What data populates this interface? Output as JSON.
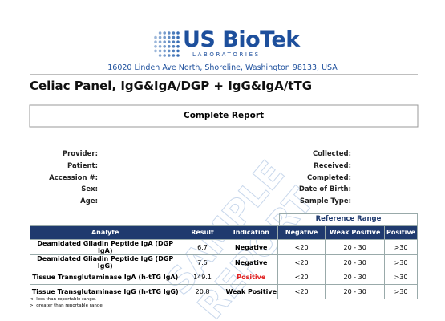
{
  "header": {
    "logo": "US BioTek",
    "logo_sub": "LABORATORIES",
    "address": "16020 Linden Ave North, Shoreline, Washington 98133, USA"
  },
  "title": "Celiac Panel, IgG&IgA/DGP + IgG&IgA/tTG",
  "report_label": "Complete Report",
  "fields_left": [
    "Provider:",
    "Patient:",
    "Accession #:",
    "Sex:",
    "Age:"
  ],
  "fields_right": [
    "Collected:",
    "Received:",
    "Completed:",
    "Date of Birth:",
    "Sample Type:"
  ],
  "table": {
    "group_header": "Reference Range",
    "columns": [
      "Analyte",
      "Result",
      "Indication",
      "Negative",
      "Weak Positive",
      "Positive"
    ],
    "rows": [
      [
        "Deamidated Gliadin Peptide IgA (DGP IgA)",
        "6.7",
        "Negative",
        "<20",
        "20 - 30",
        ">30"
      ],
      [
        "Deamidated Gliadin Peptide IgG (DGP IgG)",
        "7.5",
        "Negative",
        "<20",
        "20 - 30",
        ">30"
      ],
      [
        "Tissue Transglutaminase IgA (h-tTG IgA)",
        "149.1",
        "Positive",
        "<20",
        "20 - 30",
        ">30"
      ],
      [
        "Tissue Transglutaminase IgG (h-tTG IgG)",
        "20.8",
        "Weak Positive",
        "<20",
        "20 - 30",
        ">30"
      ]
    ]
  },
  "footnotes": [
    "<: less than reportable range.",
    ">: greater than reportable range."
  ],
  "watermark": [
    "SAMPLE",
    "REPORT"
  ]
}
